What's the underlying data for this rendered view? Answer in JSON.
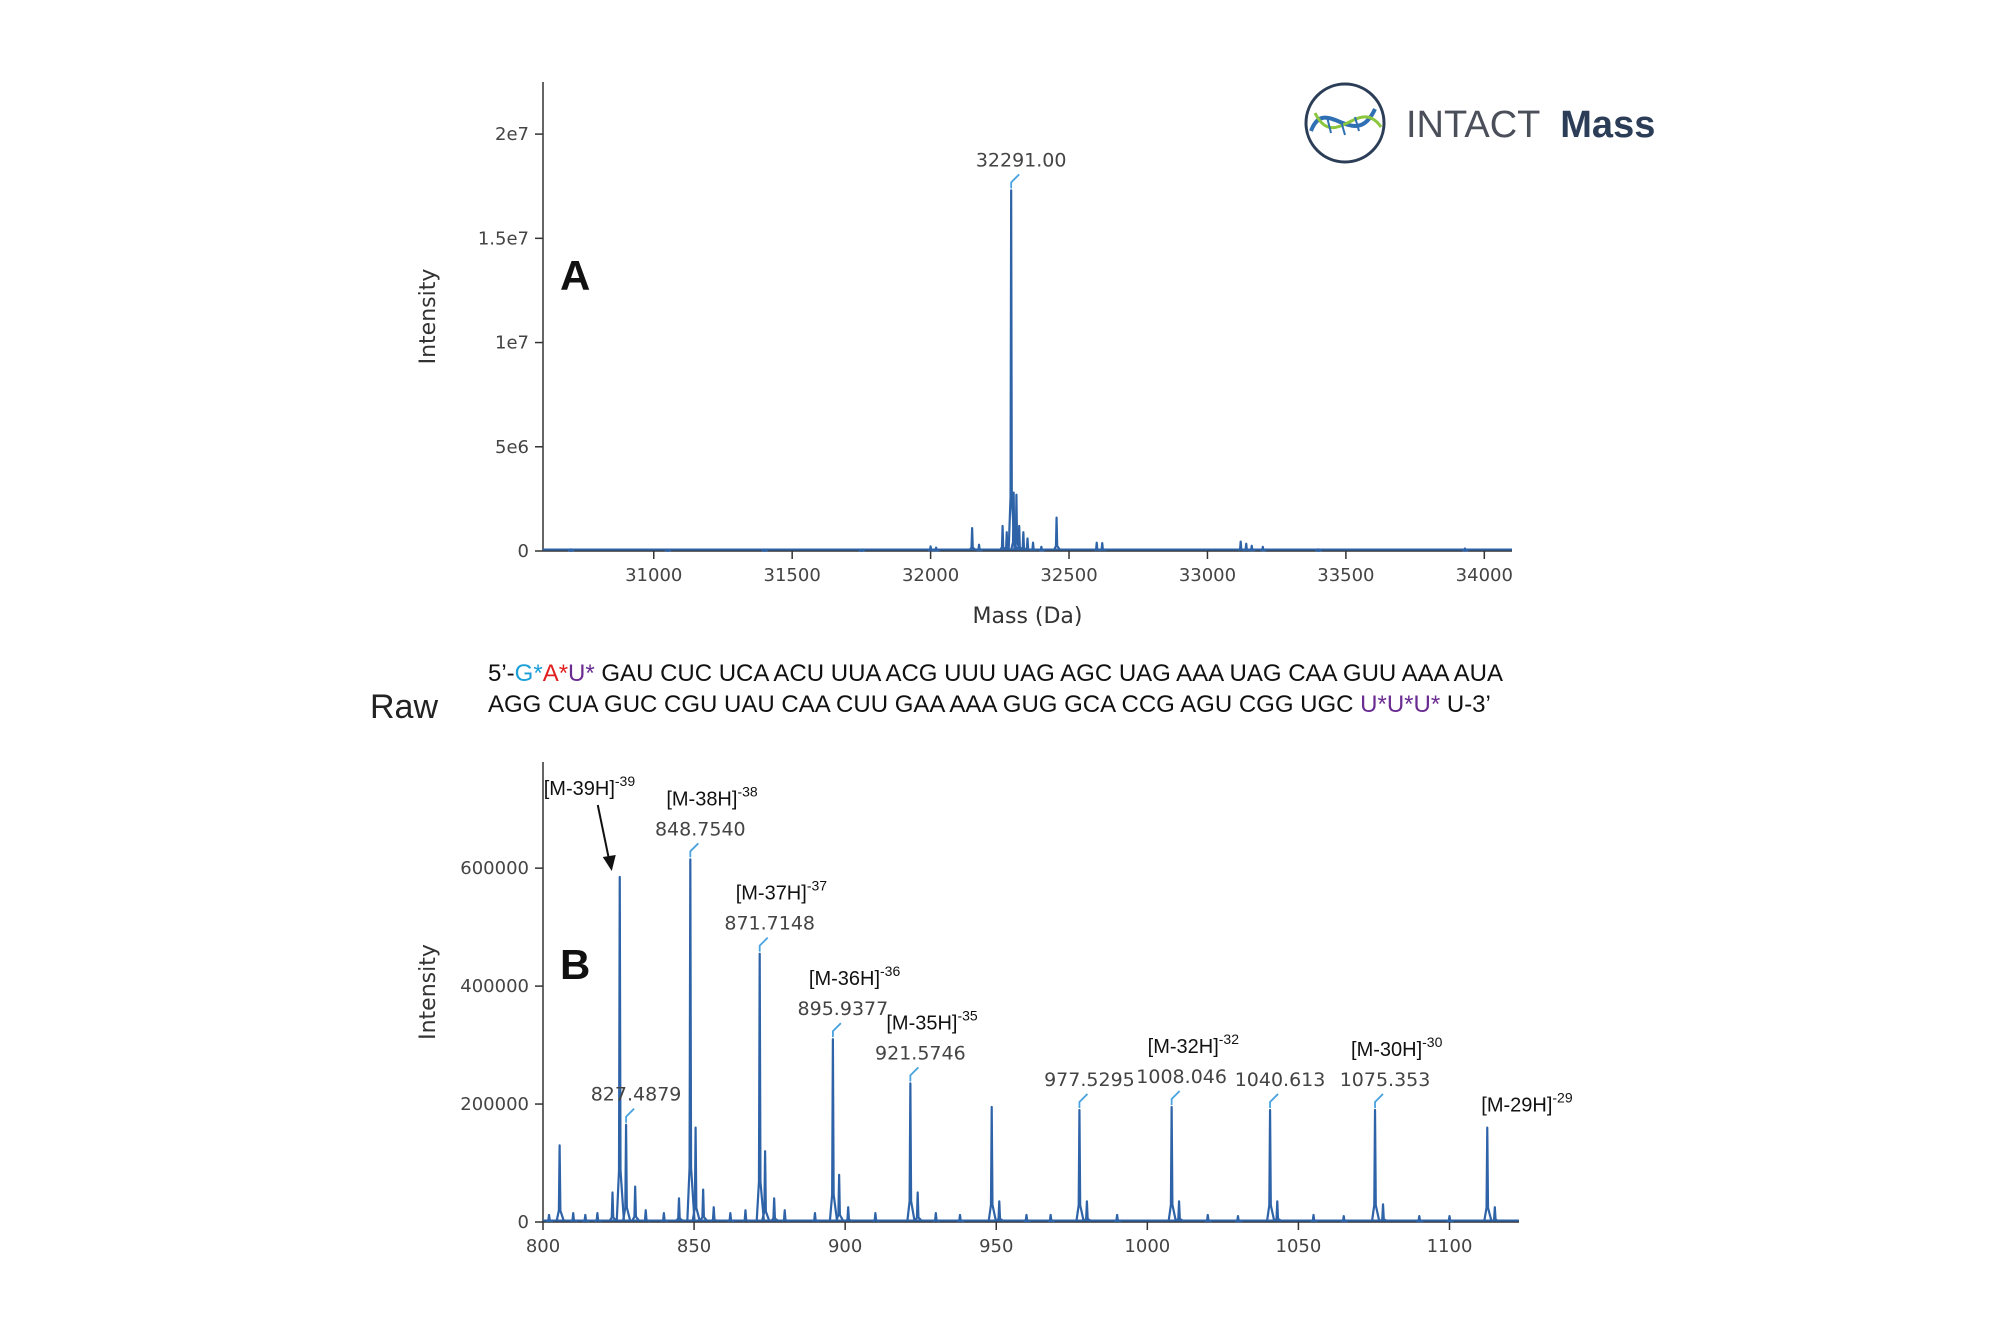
{
  "logo": {
    "brand_regular": "INTACT",
    "brand_bold": "Mass",
    "icon": "dna-helix-icon",
    "color_text": "#4a4f5a",
    "color_bold": "#2c3e57",
    "color_accent": "#2f6fb3",
    "color_accent2": "#8cc63f"
  },
  "raw_label": "Raw",
  "sequence": {
    "line1": [
      {
        "text": "5’-",
        "color": "#111111"
      },
      {
        "text": "G*",
        "color": "#1a9fd6"
      },
      {
        "text": "A*",
        "color": "#e02020"
      },
      {
        "text": "U*",
        "color": "#6a2c91"
      },
      {
        "text": " GAU CUC UCA ACU UUA ACG UUU UAG AGC UAG AAA UAG CAA GUU AAA AUA",
        "color": "#111111"
      }
    ],
    "line2": [
      {
        "text": "AGG CUA GUC CGU UAU CAA CUU GAA AAA GUG GCA CCG AGU CGG UGC ",
        "color": "#111111"
      },
      {
        "text": "U*U*U*",
        "color": "#6a2c91"
      },
      {
        "text": " U-3’",
        "color": "#111111"
      }
    ]
  },
  "chart_data": [
    {
      "type": "line",
      "panel_label": "A",
      "xlabel": "Mass (Da)",
      "ylabel": "Intensity",
      "xlim": [
        30600,
        34100
      ],
      "ylim": [
        0,
        22500000
      ],
      "xticks": [
        31000,
        31500,
        32000,
        32500,
        33000,
        33500,
        34000
      ],
      "yticks": [
        {
          "value": 0,
          "label": "0"
        },
        {
          "value": 5000000,
          "label": "5e6"
        },
        {
          "value": 10000000,
          "label": "1e7"
        },
        {
          "value": 15000000,
          "label": "1.5e7"
        },
        {
          "value": 20000000,
          "label": "2e7"
        }
      ],
      "series_color": "#2e63a8",
      "peaks": [
        {
          "x": 30700,
          "y": 80000
        },
        {
          "x": 31050,
          "y": 60000
        },
        {
          "x": 31400,
          "y": 70000
        },
        {
          "x": 31750,
          "y": 60000
        },
        {
          "x": 32000,
          "y": 220000
        },
        {
          "x": 32020,
          "y": 160000
        },
        {
          "x": 32150,
          "y": 1100000
        },
        {
          "x": 32175,
          "y": 300000
        },
        {
          "x": 32260,
          "y": 1200000
        },
        {
          "x": 32275,
          "y": 900000
        },
        {
          "x": 32291,
          "y": 17300000
        },
        {
          "x": 32300,
          "y": 2800000
        },
        {
          "x": 32310,
          "y": 2700000
        },
        {
          "x": 32320,
          "y": 1200000
        },
        {
          "x": 32335,
          "y": 900000
        },
        {
          "x": 32350,
          "y": 600000
        },
        {
          "x": 32370,
          "y": 400000
        },
        {
          "x": 32400,
          "y": 200000
        },
        {
          "x": 32455,
          "y": 1600000
        },
        {
          "x": 32600,
          "y": 400000
        },
        {
          "x": 32620,
          "y": 380000
        },
        {
          "x": 33120,
          "y": 450000
        },
        {
          "x": 33140,
          "y": 350000
        },
        {
          "x": 33160,
          "y": 250000
        },
        {
          "x": 33200,
          "y": 200000
        },
        {
          "x": 33400,
          "y": 80000
        },
        {
          "x": 33930,
          "y": 120000
        }
      ],
      "annotations": [
        {
          "x": 32291,
          "y": 17300000,
          "label": "32291.00"
        }
      ]
    },
    {
      "type": "line",
      "panel_label": "B",
      "xlabel": "",
      "ylabel": "Intensity",
      "xlim": [
        800,
        1123
      ],
      "ylim": [
        0,
        780000
      ],
      "xticks": [
        800,
        850,
        900,
        950,
        1000,
        1050,
        1100
      ],
      "yticks": [
        {
          "value": 0,
          "label": "0"
        },
        {
          "value": 200000,
          "label": "200000"
        },
        {
          "value": 400000,
          "label": "400000"
        },
        {
          "value": 600000,
          "label": "600000"
        }
      ],
      "series_color": "#2e63a8",
      "peaks": [
        {
          "x": 802,
          "y": 12000
        },
        {
          "x": 805.5,
          "y": 130000
        },
        {
          "x": 810,
          "y": 15000
        },
        {
          "x": 814,
          "y": 12000
        },
        {
          "x": 818,
          "y": 15000
        },
        {
          "x": 823,
          "y": 50000
        },
        {
          "x": 825.4,
          "y": 585000
        },
        {
          "x": 827.49,
          "y": 165000
        },
        {
          "x": 830.5,
          "y": 60000
        },
        {
          "x": 834,
          "y": 20000
        },
        {
          "x": 840,
          "y": 15000
        },
        {
          "x": 845,
          "y": 40000
        },
        {
          "x": 848.754,
          "y": 615000
        },
        {
          "x": 850.5,
          "y": 160000
        },
        {
          "x": 853,
          "y": 55000
        },
        {
          "x": 856.5,
          "y": 25000
        },
        {
          "x": 862,
          "y": 15000
        },
        {
          "x": 867,
          "y": 20000
        },
        {
          "x": 871.715,
          "y": 455000
        },
        {
          "x": 873.5,
          "y": 120000
        },
        {
          "x": 876.5,
          "y": 40000
        },
        {
          "x": 880,
          "y": 20000
        },
        {
          "x": 890,
          "y": 15000
        },
        {
          "x": 895.938,
          "y": 310000
        },
        {
          "x": 898,
          "y": 80000
        },
        {
          "x": 901,
          "y": 25000
        },
        {
          "x": 910,
          "y": 15000
        },
        {
          "x": 921.575,
          "y": 235000
        },
        {
          "x": 924,
          "y": 50000
        },
        {
          "x": 930,
          "y": 15000
        },
        {
          "x": 938,
          "y": 12000
        },
        {
          "x": 948.5,
          "y": 195000
        },
        {
          "x": 951,
          "y": 35000
        },
        {
          "x": 960,
          "y": 12000
        },
        {
          "x": 968,
          "y": 12000
        },
        {
          "x": 977.53,
          "y": 190000
        },
        {
          "x": 980,
          "y": 35000
        },
        {
          "x": 990,
          "y": 12000
        },
        {
          "x": 1008.046,
          "y": 195000
        },
        {
          "x": 1010.5,
          "y": 35000
        },
        {
          "x": 1020,
          "y": 12000
        },
        {
          "x": 1030,
          "y": 10000
        },
        {
          "x": 1040.613,
          "y": 190000
        },
        {
          "x": 1043,
          "y": 35000
        },
        {
          "x": 1055,
          "y": 12000
        },
        {
          "x": 1065,
          "y": 10000
        },
        {
          "x": 1075.353,
          "y": 190000
        },
        {
          "x": 1078,
          "y": 30000
        },
        {
          "x": 1090,
          "y": 10000
        },
        {
          "x": 1100,
          "y": 10000
        },
        {
          "x": 1112.5,
          "y": 160000
        },
        {
          "x": 1115,
          "y": 25000
        }
      ],
      "annotations": [
        {
          "x": 848.754,
          "y": 615000,
          "value": "848.7540",
          "ion": "[M-38H]",
          "charge": "-38"
        },
        {
          "x": 871.715,
          "y": 455000,
          "value": "871.7148",
          "ion": "[M-37H]",
          "charge": "-37"
        },
        {
          "x": 895.938,
          "y": 310000,
          "value": "895.9377",
          "ion": "[M-36H]",
          "charge": "-36"
        },
        {
          "x": 921.575,
          "y": 235000,
          "value": "921.5746",
          "ion": "[M-35H]",
          "charge": "-35"
        },
        {
          "x": 977.53,
          "y": 190000,
          "value": "977.5295",
          "ion": "",
          "charge": ""
        },
        {
          "x": 1008.046,
          "y": 195000,
          "value": "1008.046",
          "ion": "[M-32H]",
          "charge": "-32"
        },
        {
          "x": 1040.613,
          "y": 190000,
          "value": "1040.613",
          "ion": "",
          "charge": ""
        },
        {
          "x": 1075.353,
          "y": 190000,
          "value": "1075.353",
          "ion": "[M-30H]",
          "charge": "-30"
        },
        {
          "x": 827.49,
          "y": 165000,
          "value": "827.4879",
          "ion": "",
          "charge": ""
        }
      ],
      "extra_labels": [
        {
          "ion": "[M-39H]",
          "charge": "-39",
          "target_x": 825.4,
          "target_y": 585000,
          "arrow": true
        },
        {
          "ion": "[M-29H]",
          "charge": "-29",
          "target_x": 1112.5,
          "target_y": 160000,
          "arrow": false
        }
      ]
    }
  ]
}
